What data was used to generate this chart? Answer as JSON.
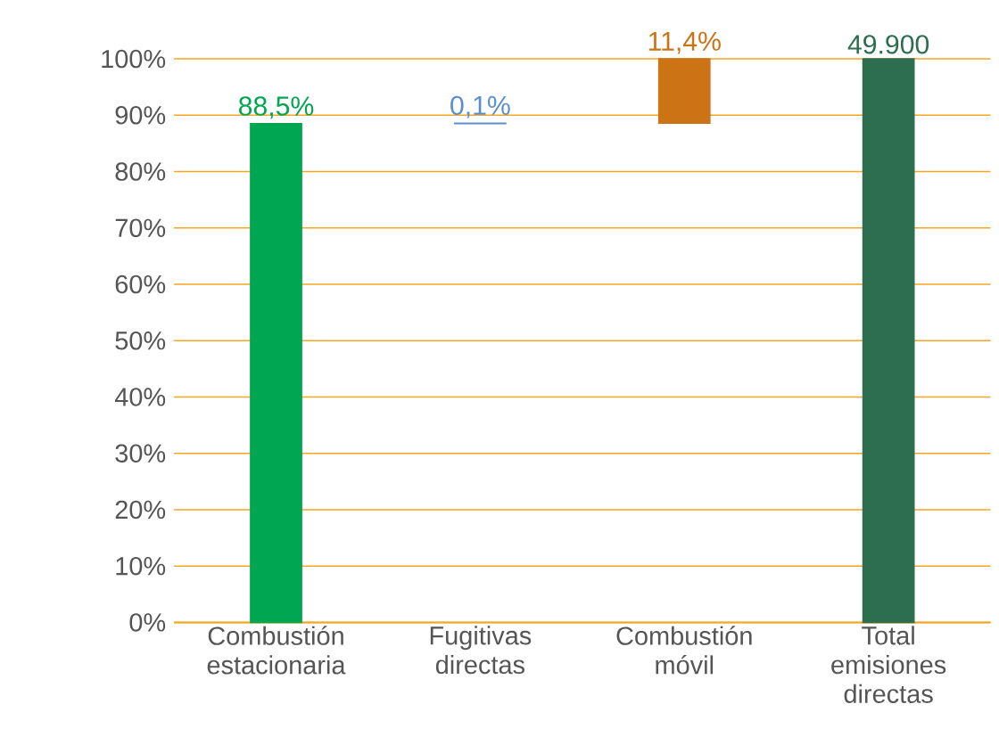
{
  "chart_data": {
    "type": "bar",
    "categories": [
      "Combustión estacionaria",
      "Fugitivas directas",
      "Combustión móvil",
      "Total emisiones directas"
    ],
    "values": [
      88.5,
      0.1,
      11.4,
      100
    ],
    "base": [
      0,
      88.5,
      88.6,
      0
    ],
    "colors": [
      "#00a651",
      "#5b8fc9",
      "#cc7316",
      "#2e6e50"
    ],
    "value_labels": [
      "88,5%",
      "0,1%",
      "11,4%",
      null
    ],
    "annotations": [
      {
        "text": "49.900",
        "x": "Total emisiones directas",
        "y": 100
      }
    ],
    "ylim": [
      0,
      100
    ],
    "yticks": [
      {
        "value": 0,
        "label": "0%"
      },
      {
        "value": 10,
        "label": "10%"
      },
      {
        "value": 20,
        "label": "20%"
      },
      {
        "value": 30,
        "label": "30%"
      },
      {
        "value": 40,
        "label": "40%"
      },
      {
        "value": 50,
        "label": "50%"
      },
      {
        "value": 60,
        "label": "60%"
      },
      {
        "value": 70,
        "label": "70%"
      },
      {
        "value": 80,
        "label": "80%"
      },
      {
        "value": 90,
        "label": "90%"
      },
      {
        "value": 100,
        "label": "100%"
      }
    ],
    "grid": "y"
  }
}
